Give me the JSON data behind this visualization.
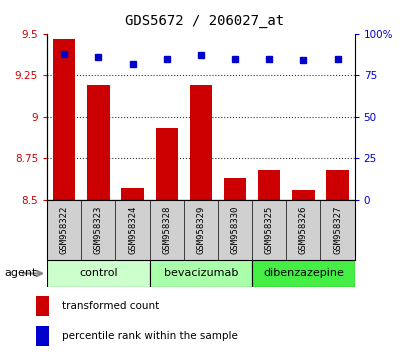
{
  "title": "GDS5672 / 206027_at",
  "samples": [
    "GSM958322",
    "GSM958323",
    "GSM958324",
    "GSM958328",
    "GSM958329",
    "GSM958330",
    "GSM958325",
    "GSM958326",
    "GSM958327"
  ],
  "transformed_count": [
    9.47,
    9.19,
    8.57,
    8.93,
    9.19,
    8.63,
    8.68,
    8.56,
    8.68
  ],
  "percentile_rank": [
    88,
    86,
    82,
    85,
    87,
    85,
    85,
    84,
    85
  ],
  "groups": [
    {
      "label": "control",
      "indices": [
        0,
        1,
        2
      ],
      "color": "#ccffcc"
    },
    {
      "label": "bevacizumab",
      "indices": [
        3,
        4,
        5
      ],
      "color": "#aaffaa"
    },
    {
      "label": "dibenzazepine",
      "indices": [
        6,
        7,
        8
      ],
      "color": "#44ee44"
    }
  ],
  "bar_color": "#cc0000",
  "dot_color": "#0000cc",
  "ylim_left": [
    8.5,
    9.5
  ],
  "ylim_right": [
    0,
    100
  ],
  "yticks_left": [
    8.5,
    8.75,
    9.0,
    9.25,
    9.5
  ],
  "yticks_right": [
    0,
    25,
    50,
    75,
    100
  ],
  "ytick_labels_left": [
    "8.5",
    "8.75",
    "9",
    "9.25",
    "9.5"
  ],
  "ytick_labels_right": [
    "0",
    "25",
    "50",
    "75",
    "100%"
  ],
  "grid_values": [
    8.75,
    9.0,
    9.25
  ],
  "bar_width": 0.65,
  "background_color": "#ffffff",
  "agent_label": "agent",
  "legend_bar_label": "transformed count",
  "legend_dot_label": "percentile rank within the sample",
  "tick_color_left": "#cc0000",
  "tick_color_right": "#0000cc",
  "title_fontsize": 10,
  "axis_fontsize": 7.5,
  "sample_fontsize": 6.5,
  "group_fontsize": 8
}
